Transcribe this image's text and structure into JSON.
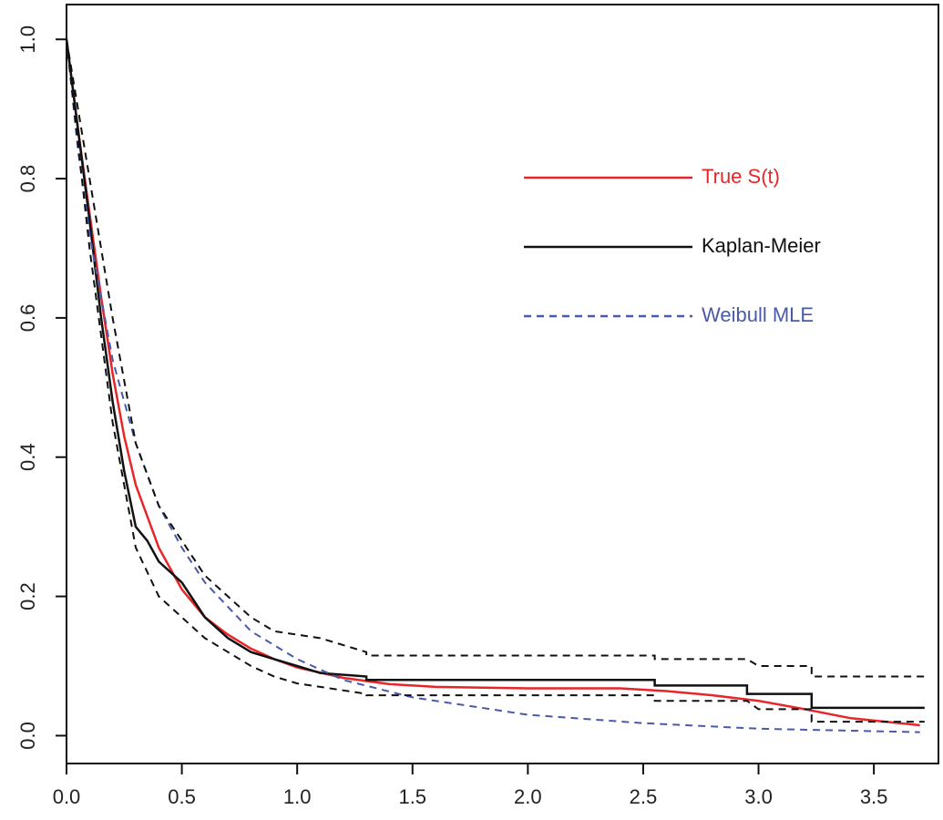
{
  "chart_data": {
    "type": "line",
    "xlim": [
      0,
      3.78
    ],
    "ylim": [
      -0.04,
      1.05
    ],
    "xticks": [
      {
        "value": 0,
        "label": "0.0"
      },
      0.5,
      {
        "value": 1,
        "label": "1.0"
      },
      1.5,
      {
        "value": 2,
        "label": "2.0"
      },
      2.5,
      {
        "value": 3,
        "label": "3.0"
      },
      3.5
    ],
    "yticks": [
      {
        "value": 0,
        "label": "0.0"
      },
      0.2,
      0.4,
      0.6,
      0.8,
      {
        "value": 1,
        "label": "1.0"
      }
    ],
    "legend": "top-right",
    "series": [
      {
        "name": "True S(t)",
        "color": "#e8262a",
        "dash": "solid",
        "x": [
          0,
          0.05,
          0.1,
          0.15,
          0.2,
          0.25,
          0.3,
          0.4,
          0.5,
          0.6,
          0.7,
          0.8,
          0.9,
          1.0,
          1.2,
          1.4,
          1.6,
          2.0,
          2.4,
          2.6,
          2.8,
          3.0,
          3.2,
          3.4,
          3.7
        ],
        "values": [
          1.0,
          0.87,
          0.75,
          0.63,
          0.52,
          0.43,
          0.36,
          0.27,
          0.21,
          0.17,
          0.145,
          0.125,
          0.11,
          0.098,
          0.083,
          0.074,
          0.07,
          0.068,
          0.068,
          0.064,
          0.058,
          0.05,
          0.038,
          0.025,
          0.015
        ]
      },
      {
        "name": "Kaplan-Meier",
        "color": "#111111",
        "dash": "solid",
        "x": [
          0,
          0.05,
          0.1,
          0.15,
          0.2,
          0.25,
          0.3,
          0.35,
          0.4,
          0.5,
          0.6,
          0.7,
          0.8,
          0.9,
          1.0,
          1.1,
          1.3,
          1.3,
          2.55,
          2.55,
          2.95,
          2.95,
          3.23,
          3.23,
          3.72
        ],
        "values": [
          1.0,
          0.87,
          0.74,
          0.6,
          0.48,
          0.38,
          0.3,
          0.28,
          0.25,
          0.22,
          0.17,
          0.14,
          0.12,
          0.11,
          0.1,
          0.09,
          0.085,
          0.08,
          0.08,
          0.072,
          0.072,
          0.06,
          0.06,
          0.04,
          0.04
        ]
      },
      {
        "name": "Weibull MLE",
        "color": "#4a5aa8",
        "dash": "dashed",
        "x": [
          0,
          0.05,
          0.1,
          0.2,
          0.3,
          0.4,
          0.5,
          0.6,
          0.8,
          1.0,
          1.2,
          1.5,
          2.0,
          2.5,
          3.0,
          3.7
        ],
        "values": [
          1.0,
          0.84,
          0.72,
          0.54,
          0.42,
          0.33,
          0.27,
          0.22,
          0.15,
          0.11,
          0.08,
          0.055,
          0.03,
          0.018,
          0.01,
          0.005
        ]
      },
      {
        "color": "#111111",
        "dash": "dashed",
        "x": [
          0,
          0.1,
          0.2,
          0.3,
          0.4,
          0.5,
          0.6,
          0.7,
          0.8,
          0.9,
          1.0,
          1.1,
          1.3,
          1.3,
          2.55,
          2.55,
          2.95,
          3.0,
          3.23,
          3.23,
          3.72
        ],
        "values": [
          1.0,
          0.8,
          0.6,
          0.42,
          0.33,
          0.28,
          0.23,
          0.2,
          0.17,
          0.15,
          0.145,
          0.14,
          0.12,
          0.115,
          0.115,
          0.11,
          0.11,
          0.1,
          0.1,
          0.085,
          0.085
        ]
      },
      {
        "color": "#111111",
        "dash": "dashed",
        "x": [
          0,
          0.1,
          0.2,
          0.3,
          0.4,
          0.5,
          0.6,
          0.7,
          0.8,
          0.9,
          1.0,
          1.1,
          1.3,
          1.3,
          2.55,
          2.55,
          2.95,
          3.0,
          3.23,
          3.23,
          3.72
        ],
        "values": [
          1.0,
          0.7,
          0.45,
          0.27,
          0.2,
          0.17,
          0.14,
          0.12,
          0.1,
          0.085,
          0.075,
          0.07,
          0.06,
          0.058,
          0.058,
          0.05,
          0.05,
          0.038,
          0.038,
          0.02,
          0.02
        ]
      }
    ]
  }
}
